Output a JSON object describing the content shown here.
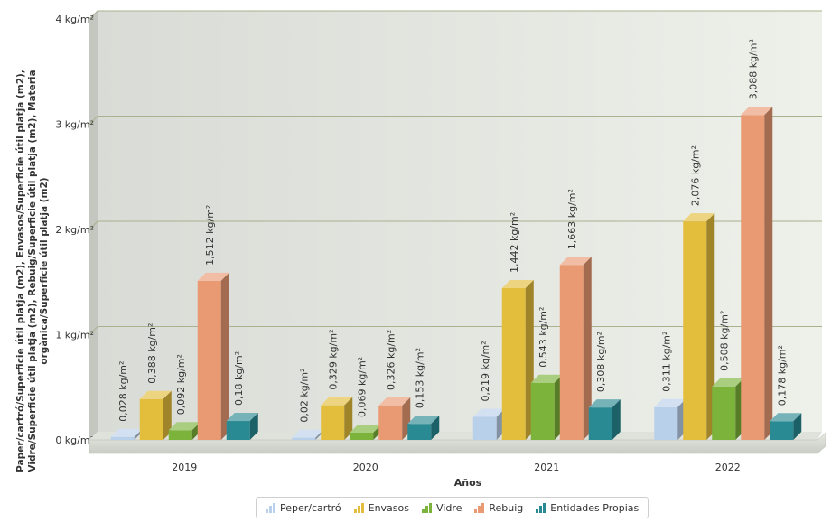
{
  "chart_data": {
    "type": "bar",
    "title": "",
    "ylabel": "Paper/cartró/Superficie útil platja (m2), Envasos/Superficie útil platja (m2), Vidre/Superficie útil platja (m2), Rebuig/Superficie útil platja (m2), Materia orgànica/Superficie útil platja (m2)",
    "xlabel": "Años",
    "categories": [
      "2019",
      "2020",
      "2021",
      "2022"
    ],
    "ylim": [
      0,
      4
    ],
    "yticks": [
      "0 kg/m²",
      "1 kg/m²",
      "2 kg/m²",
      "3 kg/m²",
      "4 kg/m²"
    ],
    "grid": true,
    "legend_position": "bottom",
    "series": [
      {
        "name": "Peper/cartró",
        "color": "#b9d0ea",
        "values": [
          0.028,
          0.02,
          0.219,
          0.311
        ],
        "labels": [
          "0,028 kg/m²",
          "0,02 kg/m²",
          "0,219 kg/m²",
          "0,311 kg/m²"
        ]
      },
      {
        "name": "Envasos",
        "color": "#e3bd3c",
        "values": [
          0.388,
          0.329,
          1.442,
          2.076
        ],
        "labels": [
          "0,388 kg/m²",
          "0,329 kg/m²",
          "1,442 kg/m²",
          "2,076 kg/m²"
        ]
      },
      {
        "name": "Vidre",
        "color": "#7cb33a",
        "values": [
          0.092,
          0.069,
          0.543,
          0.508
        ],
        "labels": [
          "0,092 kg/m²",
          "0,069 kg/m²",
          "0,543 kg/m²",
          "0,508 kg/m²"
        ]
      },
      {
        "name": "Rebuig",
        "color": "#e99a73",
        "values": [
          1.512,
          0.326,
          1.663,
          3.088
        ],
        "labels": [
          "1,512 kg/m²",
          "0,326 kg/m²",
          "1,663 kg/m²",
          "3,088 kg/m²"
        ]
      },
      {
        "name": "Entidades Propias",
        "color": "#2a8a94",
        "values": [
          0.18,
          0.153,
          0.308,
          0.178
        ],
        "labels": [
          "0,18 kg/m²",
          "0,153 kg/m²",
          "0,308 kg/m²",
          "0,178 kg/m²"
        ]
      }
    ]
  }
}
